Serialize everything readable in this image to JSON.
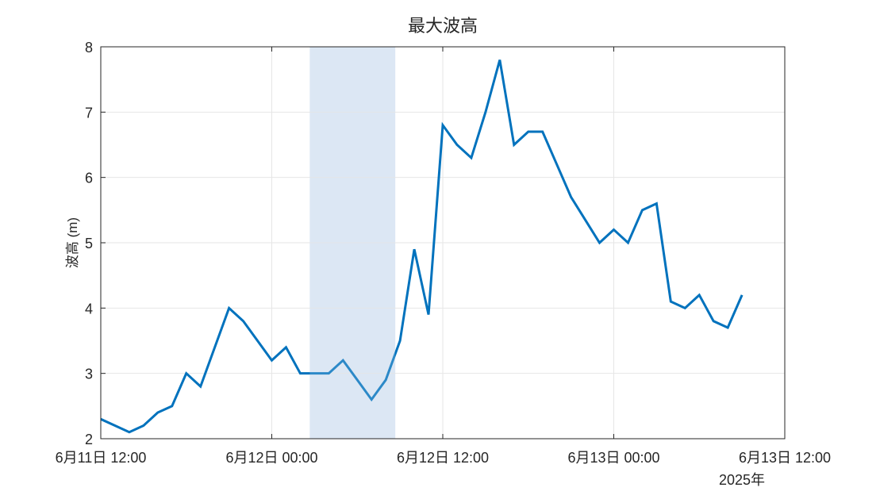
{
  "chart_data": {
    "type": "line",
    "title": "最大波高",
    "ylabel": "波高 (m)",
    "xlabel": "",
    "ylim": [
      2,
      8
    ],
    "yticks": [
      2,
      3,
      4,
      5,
      6,
      7,
      8
    ],
    "xlim": [
      "2025-06-11 12:00",
      "2025-06-13 12:00"
    ],
    "xticks": [
      "6月11日 12:00",
      "6月12日 00:00",
      "6月12日 12:00",
      "6月13日 00:00",
      "6月13日 12:00"
    ],
    "x_secondary_label": "2025年",
    "grid": true,
    "line_color": "#0072BD",
    "highlight_color": "#DCE8F4",
    "highlight_span": [
      "2025-06-12 02:40",
      "2025-06-12 08:40"
    ],
    "x": [
      "2025-06-11 12:00",
      "2025-06-11 13:00",
      "2025-06-11 14:00",
      "2025-06-11 15:00",
      "2025-06-11 16:00",
      "2025-06-11 17:00",
      "2025-06-11 18:00",
      "2025-06-11 19:00",
      "2025-06-11 20:00",
      "2025-06-11 21:00",
      "2025-06-11 22:00",
      "2025-06-11 23:00",
      "2025-06-12 00:00",
      "2025-06-12 01:00",
      "2025-06-12 02:00",
      "2025-06-12 03:00",
      "2025-06-12 04:00",
      "2025-06-12 05:00",
      "2025-06-12 06:00",
      "2025-06-12 07:00",
      "2025-06-12 08:00",
      "2025-06-12 09:00",
      "2025-06-12 10:00",
      "2025-06-12 11:00",
      "2025-06-12 12:00",
      "2025-06-12 13:00",
      "2025-06-12 14:00",
      "2025-06-12 15:00",
      "2025-06-12 16:00",
      "2025-06-12 17:00",
      "2025-06-12 18:00",
      "2025-06-12 19:00",
      "2025-06-12 20:00",
      "2025-06-12 21:00",
      "2025-06-12 22:00",
      "2025-06-12 23:00",
      "2025-06-13 00:00",
      "2025-06-13 01:00",
      "2025-06-13 02:00",
      "2025-06-13 03:00",
      "2025-06-13 04:00",
      "2025-06-13 05:00",
      "2025-06-13 06:00",
      "2025-06-13 07:00",
      "2025-06-13 08:00",
      "2025-06-13 09:00"
    ],
    "values": [
      2.3,
      2.2,
      2.1,
      2.2,
      2.4,
      2.5,
      3.0,
      2.8,
      3.4,
      4.0,
      3.8,
      3.5,
      3.2,
      3.4,
      3.0,
      3.0,
      3.0,
      3.2,
      2.9,
      2.6,
      2.9,
      3.5,
      4.9,
      3.9,
      6.8,
      6.5,
      6.3,
      7.0,
      7.8,
      6.5,
      6.7,
      6.7,
      6.2,
      5.7,
      5.35,
      5.0,
      5.2,
      5.0,
      5.5,
      5.6,
      4.1,
      4.0,
      4.2,
      3.8,
      3.7,
      4.2
    ]
  }
}
